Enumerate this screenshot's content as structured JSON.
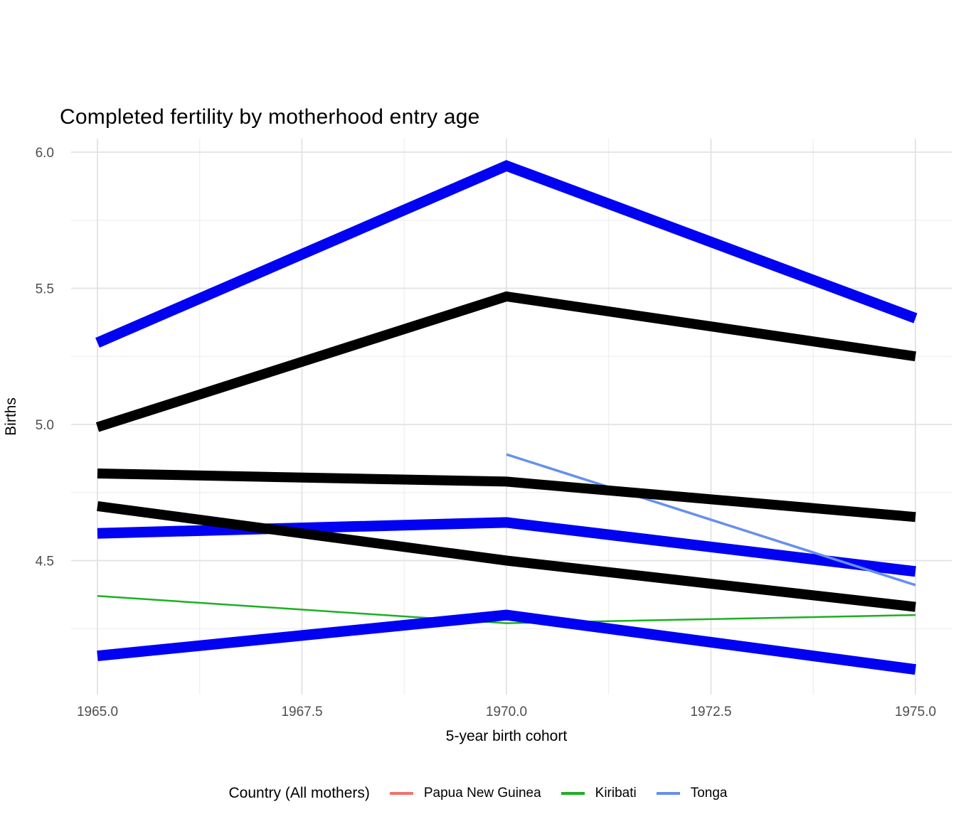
{
  "chart_data": {
    "type": "line",
    "title": "Completed fertility by motherhood entry age",
    "xlabel": "5-year birth cohort",
    "ylabel": "Births",
    "xlim": [
      1964.5,
      1975.5
    ],
    "ylim": [
      4.01,
      6.05
    ],
    "grid": "on",
    "x_ticks": {
      "values": [
        1965.0,
        1967.5,
        1970.0,
        1972.5,
        1975.0
      ],
      "labels": [
        "1965.0",
        "1967.5",
        "1970.0",
        "1972.5",
        "1975.0"
      ],
      "minor_values": [
        1966.25,
        1968.75,
        1971.25,
        1973.75
      ]
    },
    "y_ticks": {
      "values": [
        6.0,
        5.5,
        5.0,
        4.5
      ],
      "labels": [
        "6.0",
        "5.5",
        "5.0",
        "4.5"
      ],
      "minor_values": [
        5.75,
        5.25,
        4.75,
        4.25
      ]
    },
    "legend": {
      "title": "Country (All mothers)",
      "position": "bottom",
      "items": [
        {
          "label": "Papua New Guinea",
          "color": "#f0726c"
        },
        {
          "label": "Kiribati",
          "color": "#1cb021"
        },
        {
          "label": "Tonga",
          "color": "#6590ee"
        }
      ]
    },
    "series": [
      {
        "name": "kiribati-thin",
        "color": "#1cb021",
        "stroke_width": 2.5,
        "points": [
          [
            1965,
            4.37
          ],
          [
            1970,
            4.27
          ],
          [
            1975,
            4.3
          ]
        ]
      },
      {
        "name": "bold-blue-upper",
        "color": "#0202f2",
        "stroke_width": 15,
        "points": [
          [
            1965,
            5.3
          ],
          [
            1970,
            5.95
          ],
          [
            1975,
            5.39
          ]
        ]
      },
      {
        "name": "bold-blue-middle",
        "color": "#0202f2",
        "stroke_width": 15,
        "points": [
          [
            1965,
            4.6
          ],
          [
            1970,
            4.64
          ],
          [
            1975,
            4.46
          ]
        ]
      },
      {
        "name": "bold-blue-lower",
        "color": "#0202f2",
        "stroke_width": 15,
        "points": [
          [
            1965,
            4.15
          ],
          [
            1970,
            4.3
          ],
          [
            1975,
            4.1
          ]
        ]
      },
      {
        "name": "tonga-thin",
        "color": "#6590ee",
        "stroke_width": 3.5,
        "points": [
          [
            1970,
            4.89
          ],
          [
            1975,
            4.41
          ]
        ]
      },
      {
        "name": "bold-black-upper",
        "color": "#000000",
        "stroke_width": 14,
        "points": [
          [
            1965,
            4.99
          ],
          [
            1970,
            5.47
          ],
          [
            1975,
            5.25
          ]
        ]
      },
      {
        "name": "bold-black-middle",
        "color": "#000000",
        "stroke_width": 14,
        "points": [
          [
            1965,
            4.82
          ],
          [
            1970,
            4.79
          ],
          [
            1975,
            4.66
          ]
        ]
      },
      {
        "name": "bold-black-lower",
        "color": "#000000",
        "stroke_width": 14,
        "points": [
          [
            1965,
            4.7
          ],
          [
            1970,
            4.5
          ],
          [
            1975,
            4.33
          ]
        ]
      }
    ],
    "grid_colors": {
      "major": "#e2e2e2",
      "minor": "#ececec"
    }
  }
}
